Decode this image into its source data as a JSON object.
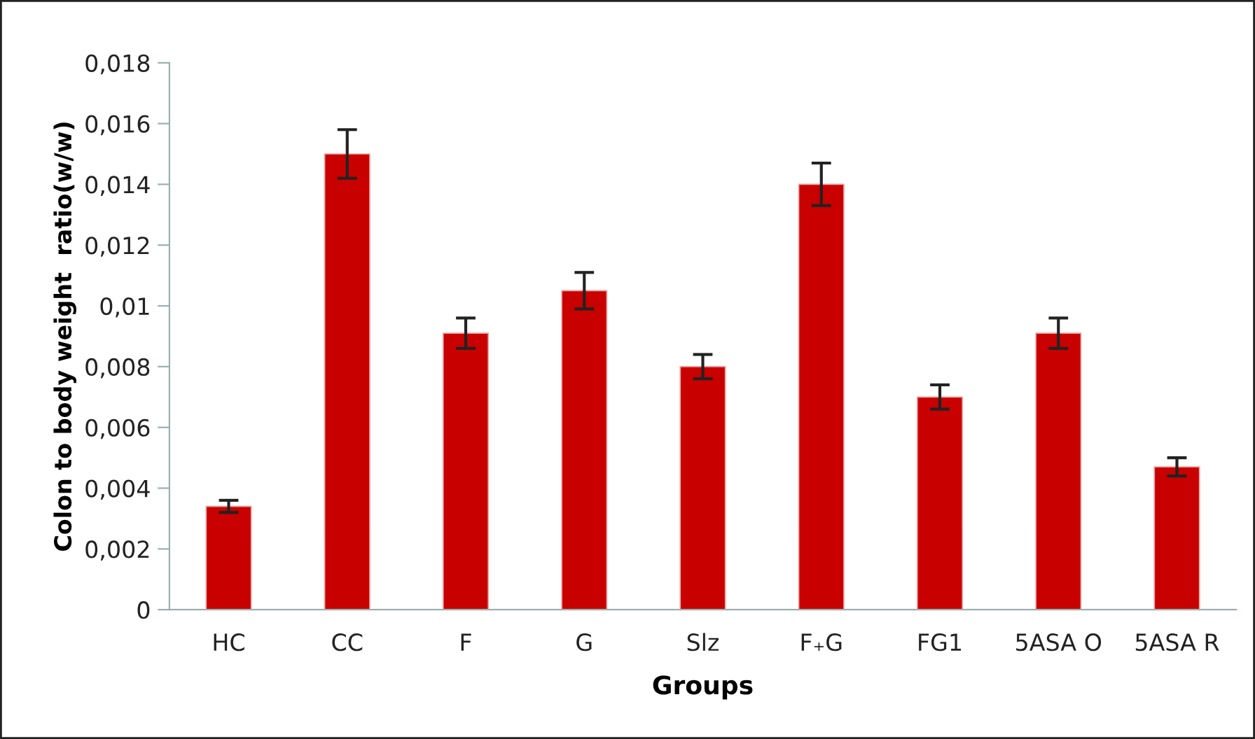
{
  "chart_data": {
    "type": "bar",
    "xlabel": "Groups",
    "ylabel": "Colon to body weight  ratio(w/w)",
    "categories": [
      "HC",
      "CC",
      "F",
      "G",
      "Slz",
      "F₊G",
      "FG1",
      "5ASA O",
      "5ASA R"
    ],
    "values": [
      0.0034,
      0.015,
      0.0091,
      0.0105,
      0.008,
      0.014,
      0.007,
      0.0091,
      0.0047
    ],
    "errors": [
      0.0002,
      0.0008,
      0.0005,
      0.0006,
      0.0004,
      0.0007,
      0.0004,
      0.0005,
      0.0003
    ],
    "color": "#c80000",
    "ylim": [
      0,
      0.018
    ],
    "yticks": [
      0,
      {
        "value": 0.002,
        "label": "0,002"
      },
      {
        "value": 0.004,
        "label": "0,004"
      },
      {
        "value": 0.006,
        "label": "0,006"
      },
      {
        "value": 0.008,
        "label": "0,008"
      },
      {
        "value": 0.01,
        "label": "0,01"
      },
      {
        "value": 0.012,
        "label": "0,012"
      },
      {
        "value": 0.014,
        "label": "0,014"
      },
      {
        "value": 0.016,
        "label": "0,016"
      },
      {
        "value": 0.018,
        "label": "0,018"
      }
    ],
    "grid": false
  }
}
